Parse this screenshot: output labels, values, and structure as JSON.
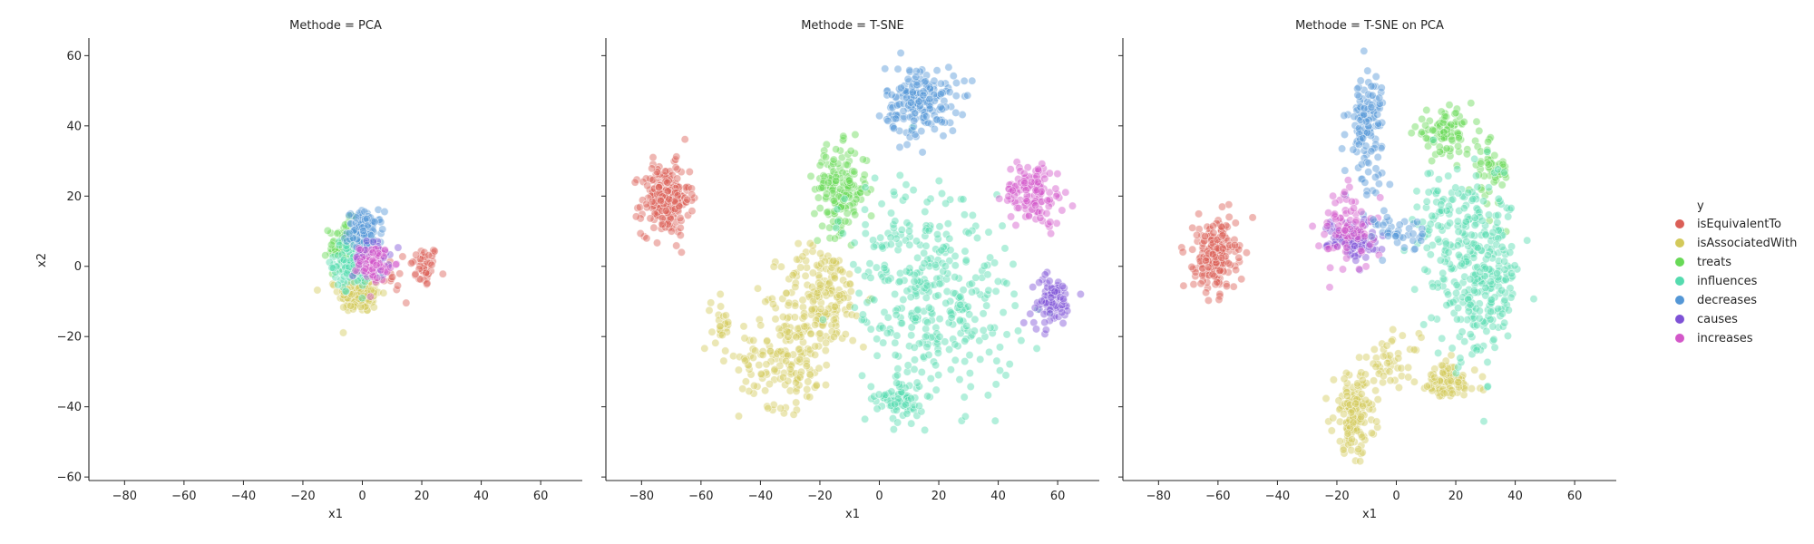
{
  "chart_data": {
    "type": "scatter",
    "x_ticks": [
      -80,
      -60,
      -40,
      -20,
      0,
      20,
      40,
      60
    ],
    "y_ticks": [
      -60,
      -40,
      -20,
      0,
      20,
      40,
      60
    ],
    "xlim": [
      -92,
      74
    ],
    "ylim": [
      -61,
      65
    ],
    "xlabel": "x1",
    "ylabel": "x2",
    "grid": false,
    "point_alpha": 0.45,
    "legend": {
      "title": "y",
      "placement": "right",
      "entries": [
        {
          "name": "isEquivalentTo",
          "color": "#db5f57"
        },
        {
          "name": "isAssociatedWith",
          "color": "#d3c95a"
        },
        {
          "name": "treats",
          "color": "#68d957"
        },
        {
          "name": "influences",
          "color": "#55dbaf"
        },
        {
          "name": "decreases",
          "color": "#5497d6"
        },
        {
          "name": "causes",
          "color": "#7e52d6"
        },
        {
          "name": "increases",
          "color": "#d357c9"
        }
      ]
    },
    "panels": [
      {
        "title": "Methode = PCA",
        "clusters": [
          {
            "series": "isEquivalentTo",
            "cx": 21,
            "cy": 0,
            "sx": 2.2,
            "sy": 3,
            "n": 45
          },
          {
            "series": "isEquivalentTo",
            "cx": 14,
            "cy": -4,
            "sx": 3.5,
            "sy": 4,
            "n": 12
          },
          {
            "series": "isAssociatedWith",
            "cx": -1,
            "cy": -8,
            "sx": 3.5,
            "sy": 2.6,
            "n": 140
          },
          {
            "series": "treats",
            "cx": -6,
            "cy": 6,
            "sx": 2.6,
            "sy": 3.5,
            "n": 80
          },
          {
            "series": "influences",
            "cx": -3,
            "cy": 1,
            "sx": 3.2,
            "sy": 3.5,
            "n": 150
          },
          {
            "series": "decreases",
            "cx": 1,
            "cy": 10,
            "sx": 3,
            "sy": 2.8,
            "n": 110
          },
          {
            "series": "causes",
            "cx": 3,
            "cy": 2,
            "sx": 3,
            "sy": 2.5,
            "n": 50
          },
          {
            "series": "increases",
            "cx": 4,
            "cy": 1,
            "sx": 2.5,
            "sy": 2.5,
            "n": 80
          }
        ]
      },
      {
        "title": "Methode = T-SNE",
        "clusters": [
          {
            "series": "isEquivalentTo",
            "cx": -72,
            "cy": 19,
            "sx": 4,
            "sy": 5,
            "n": 240
          },
          {
            "series": "isAssociatedWith",
            "cx": -19,
            "cy": -8,
            "sx": 7,
            "sy": 7,
            "n": 170
          },
          {
            "series": "isAssociatedWith",
            "cx": -31,
            "cy": -26,
            "sx": 8,
            "sy": 7,
            "n": 170
          },
          {
            "series": "isAssociatedWith",
            "cx": -53,
            "cy": -16,
            "sx": 1.8,
            "sy": 3.5,
            "n": 25
          },
          {
            "series": "treats",
            "cx": -13,
            "cy": 22,
            "sx": 4.5,
            "sy": 6,
            "n": 170
          },
          {
            "series": "influences",
            "cx": 7,
            "cy": -38,
            "sx": 4,
            "sy": 3,
            "n": 70
          },
          {
            "series": "influences",
            "cx": 20,
            "cy": -12,
            "sx": 13,
            "sy": 13,
            "n": 260
          },
          {
            "series": "influences",
            "cx": 10,
            "cy": 5,
            "sx": 12,
            "sy": 12,
            "n": 110
          },
          {
            "series": "decreases",
            "cx": 14,
            "cy": 47,
            "sx": 6,
            "sy": 5,
            "n": 190
          },
          {
            "series": "causes",
            "cx": 58,
            "cy": -10,
            "sx": 3.5,
            "sy": 3.5,
            "n": 80
          },
          {
            "series": "increases",
            "cx": 52,
            "cy": 21,
            "sx": 5,
            "sy": 4.5,
            "n": 130
          }
        ]
      },
      {
        "title": "Methode = T-SNE on PCA",
        "clusters": [
          {
            "series": "isEquivalentTo",
            "cx": -61,
            "cy": 3,
            "sx": 3.5,
            "sy": 5,
            "n": 210
          },
          {
            "series": "isAssociatedWith",
            "cx": -14,
            "cy": -42,
            "sx": 3.5,
            "sy": 5.5,
            "n": 150
          },
          {
            "series": "isAssociatedWith",
            "cx": 17,
            "cy": -33,
            "sx": 5,
            "sy": 3,
            "n": 90
          },
          {
            "series": "isAssociatedWith",
            "cx": -2,
            "cy": -27,
            "sx": 5,
            "sy": 3.5,
            "n": 45
          },
          {
            "series": "treats",
            "cx": 16,
            "cy": 38,
            "sx": 5,
            "sy": 3,
            "n": 90
          },
          {
            "series": "treats",
            "cx": 32,
            "cy": 27,
            "sx": 3,
            "sy": 5,
            "n": 50
          },
          {
            "series": "influences",
            "cx": 28,
            "cy": -3,
            "sx": 7,
            "sy": 12,
            "n": 300
          },
          {
            "series": "influences",
            "cx": 16,
            "cy": 12,
            "sx": 4,
            "sy": 8,
            "n": 70
          },
          {
            "series": "decreases",
            "cx": -10,
            "cy": 40,
            "sx": 3,
            "sy": 8,
            "n": 130
          },
          {
            "series": "causes",
            "cx": -15,
            "cy": 8,
            "sx": 4,
            "sy": 2.8,
            "n": 110
          },
          {
            "series": "increases",
            "cx": -16,
            "cy": 10,
            "sx": 5,
            "sy": 6,
            "n": 80
          },
          {
            "series": "decreases",
            "cx": 1,
            "cy": 10,
            "sx": 4,
            "sy": 3,
            "n": 40
          }
        ]
      }
    ]
  }
}
